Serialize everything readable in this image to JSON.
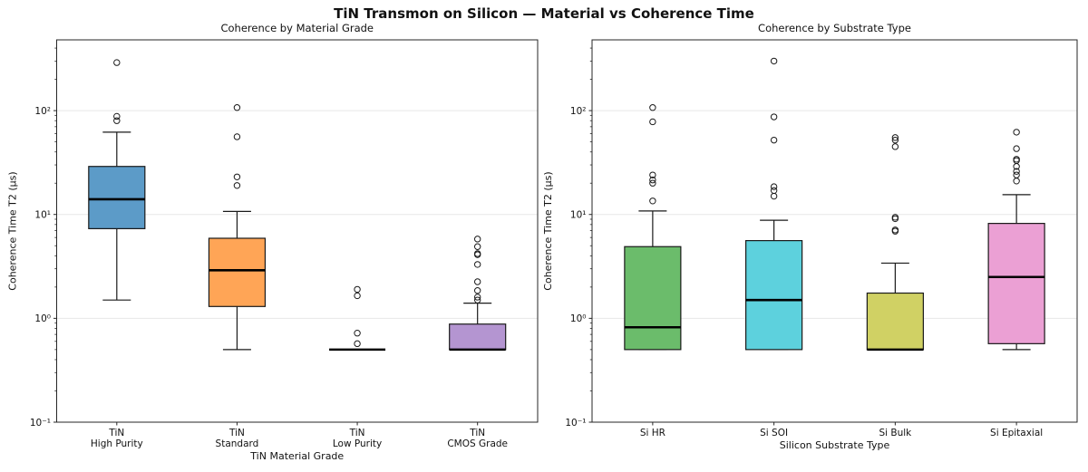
{
  "figure_title": "TiN Transmon on Silicon — Material vs Coherence Time",
  "chart_data": [
    {
      "type": "box",
      "title": "Coherence by Material Grade",
      "xlabel": "TiN Material Grade",
      "ylabel": "Coherence Time T2 (µs)",
      "yscale": "log",
      "ylim": [
        0.1,
        480
      ],
      "grid": "horizontal-major",
      "legend": "none",
      "ytick_values": [
        0.1,
        1,
        10,
        100
      ],
      "ytick_labels": [
        "10⁻¹",
        "10⁰",
        "10¹",
        "10²"
      ],
      "boxes": [
        {
          "label": "TiN\nHigh Purity",
          "color": "#5C9BC8",
          "whisker_low": 1.5,
          "q1": 7.3,
          "median": 14,
          "q3": 29,
          "whisker_high": 62,
          "outliers": [
            80,
            88,
            290
          ]
        },
        {
          "label": "TiN\nStandard",
          "color": "#FFA556",
          "whisker_low": 0.5,
          "q1": 1.3,
          "median": 2.9,
          "q3": 5.9,
          "whisker_high": 10.7,
          "outliers": [
            19,
            23,
            56,
            107
          ]
        },
        {
          "label": "TiN\nLow Purity",
          "color": "#CCCCCC",
          "whisker_low": 0.5,
          "q1": 0.5,
          "median": 0.5,
          "q3": 0.5,
          "whisker_high": 0.5,
          "outliers": [
            0.57,
            0.72,
            1.65,
            1.9
          ]
        },
        {
          "label": "TiN\nCMOS Grade",
          "color": "#B495D1",
          "whisker_low": 0.5,
          "q1": 0.5,
          "median": 0.5,
          "q3": 0.88,
          "whisker_high": 1.4,
          "outliers": [
            1.5,
            1.6,
            1.85,
            2.25,
            3.3,
            4.1,
            4.2,
            4.9,
            5.8
          ]
        }
      ]
    },
    {
      "type": "box",
      "title": "Coherence by Substrate Type",
      "xlabel": "Silicon Substrate Type",
      "ylabel": "Coherence Time T2 (µs)",
      "yscale": "log",
      "ylim": [
        0.1,
        480
      ],
      "grid": "horizontal-major",
      "legend": "none",
      "ytick_values": [
        0.1,
        1,
        10,
        100
      ],
      "ytick_labels": [
        "10⁻¹",
        "10⁰",
        "10¹",
        "10²"
      ],
      "boxes": [
        {
          "label": "Si HR",
          "color": "#6BBC6B",
          "whisker_low": 0.5,
          "q1": 0.5,
          "median": 0.82,
          "q3": 4.9,
          "whisker_high": 10.8,
          "outliers": [
            13.5,
            20,
            21.5,
            24,
            78,
            107
          ]
        },
        {
          "label": "Si SOI",
          "color": "#5DD1DD",
          "whisker_low": 0.5,
          "q1": 0.5,
          "median": 1.5,
          "q3": 5.6,
          "whisker_high": 8.8,
          "outliers": [
            15,
            17,
            18.5,
            52,
            87,
            300
          ]
        },
        {
          "label": "Si Bulk",
          "color": "#D0D164",
          "whisker_low": 0.5,
          "q1": 0.5,
          "median": 0.5,
          "q3": 1.75,
          "whisker_high": 3.4,
          "outliers": [
            6.9,
            7.1,
            9.1,
            9.4,
            45,
            52,
            55
          ]
        },
        {
          "label": "Si Epitaxial",
          "color": "#EBA0D4",
          "whisker_low": 0.5,
          "q1": 0.57,
          "median": 2.5,
          "q3": 8.2,
          "whisker_high": 15.5,
          "outliers": [
            21,
            24,
            26,
            29,
            33,
            34,
            43,
            62
          ]
        }
      ]
    }
  ]
}
